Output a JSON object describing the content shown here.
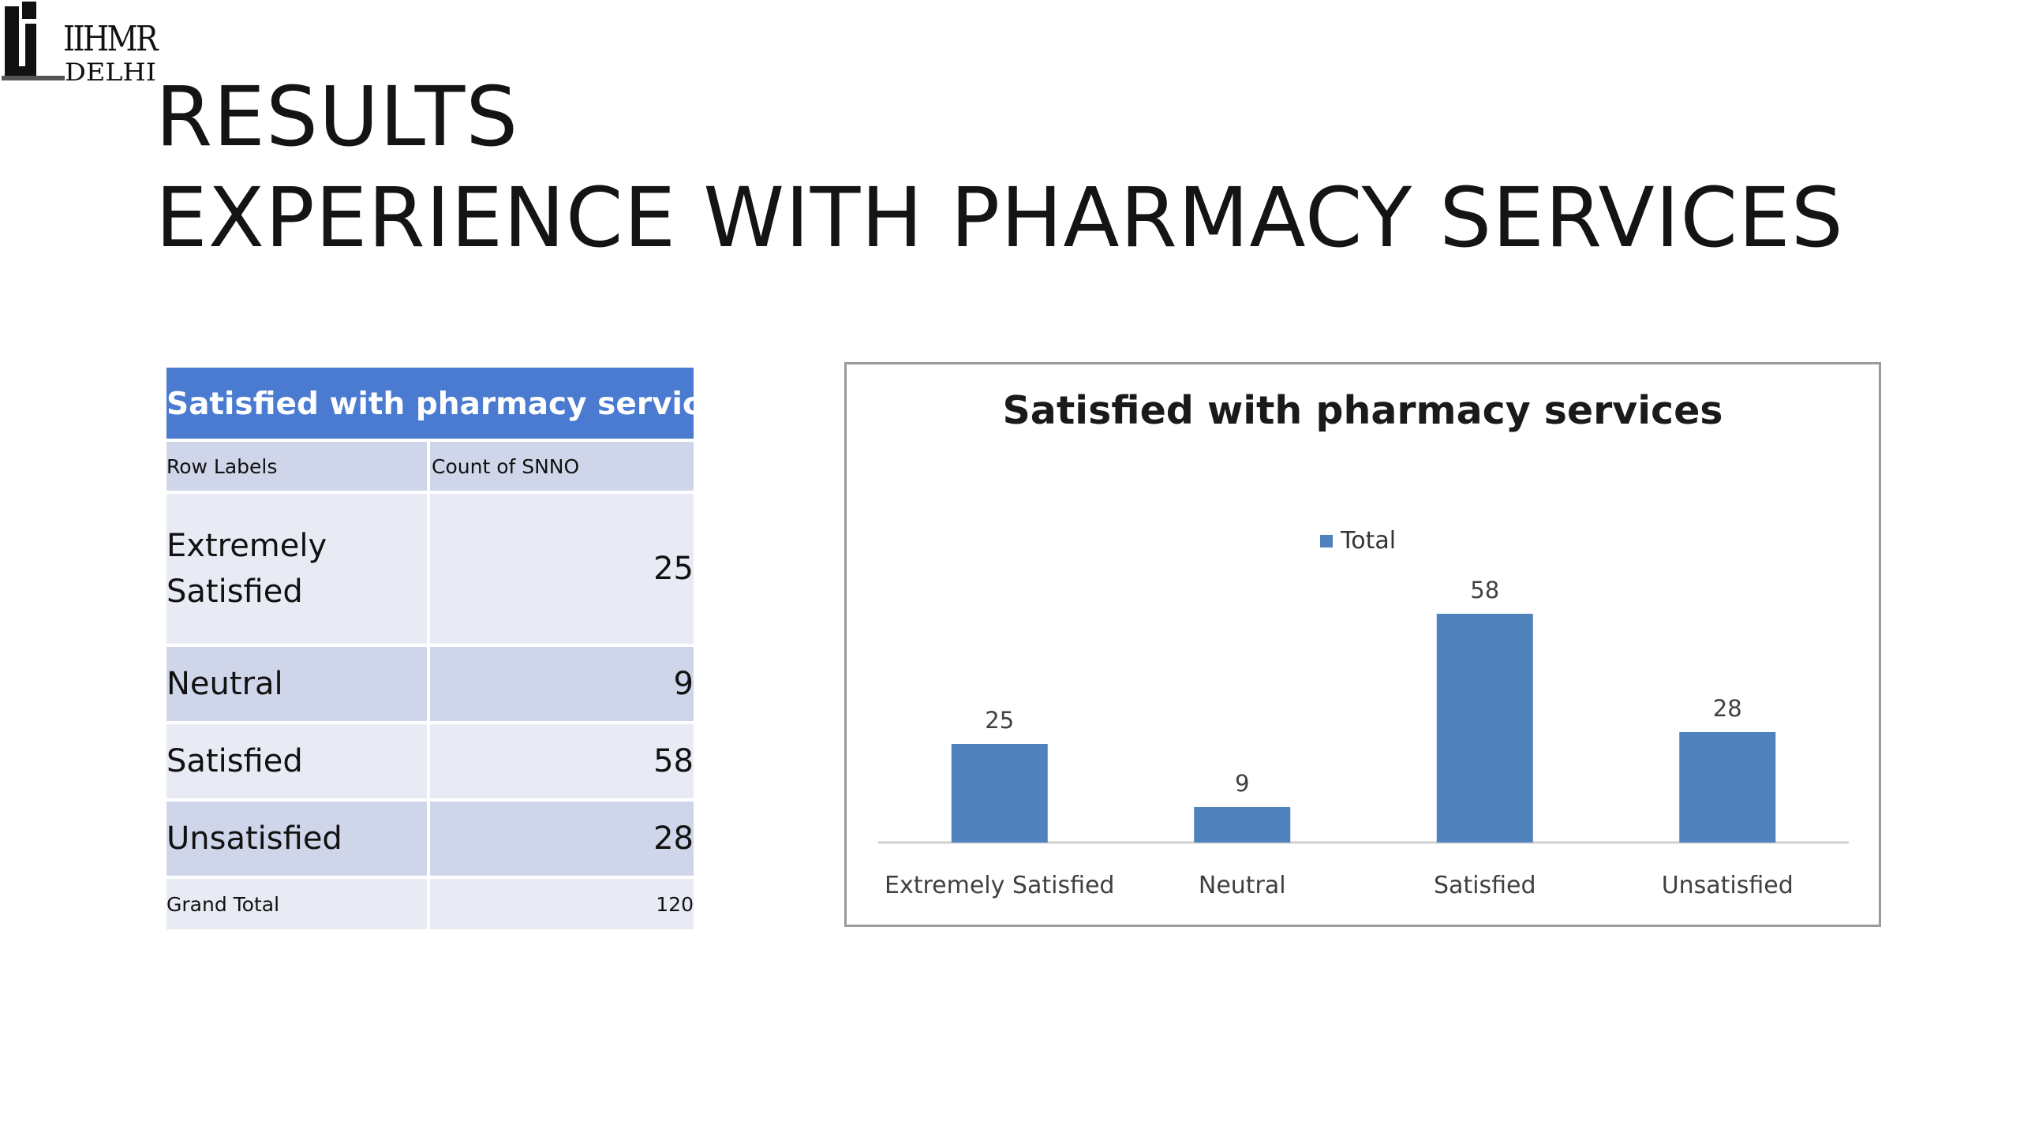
{
  "logo": {
    "text_main": "IIHMR",
    "text_sub": "DELHI"
  },
  "slide": {
    "title_line1": "RESULTS",
    "title_line2": "EXPERIENCE WITH PHARMACY SERVICES"
  },
  "pivot_table": {
    "title": "Satisfied with pharmacy services",
    "col_headers": [
      "Row Labels",
      "Count of SNNO"
    ],
    "rows": [
      {
        "label": "Extremely\nSatisfied",
        "value": "25"
      },
      {
        "label": "Neutral",
        "value": "9"
      },
      {
        "label": "Satisfied",
        "value": "58"
      },
      {
        "label": "Unsatisfied",
        "value": "28"
      }
    ],
    "total_label": "Grand Total",
    "total_value": "120"
  },
  "chart_data": {
    "type": "bar",
    "title": "Satisfied with pharmacy services",
    "categories": [
      "Extremely Satisfied",
      "Neutral",
      "Satisfied",
      "Unsatisfied"
    ],
    "series": [
      {
        "name": "Total",
        "values": [
          25,
          9,
          58,
          28
        ],
        "color": "#4f81bd"
      }
    ],
    "data_labels": true,
    "legend_position": "top",
    "xlabel": "",
    "ylabel": "",
    "ylim": [
      0,
      70
    ],
    "grid": false
  }
}
